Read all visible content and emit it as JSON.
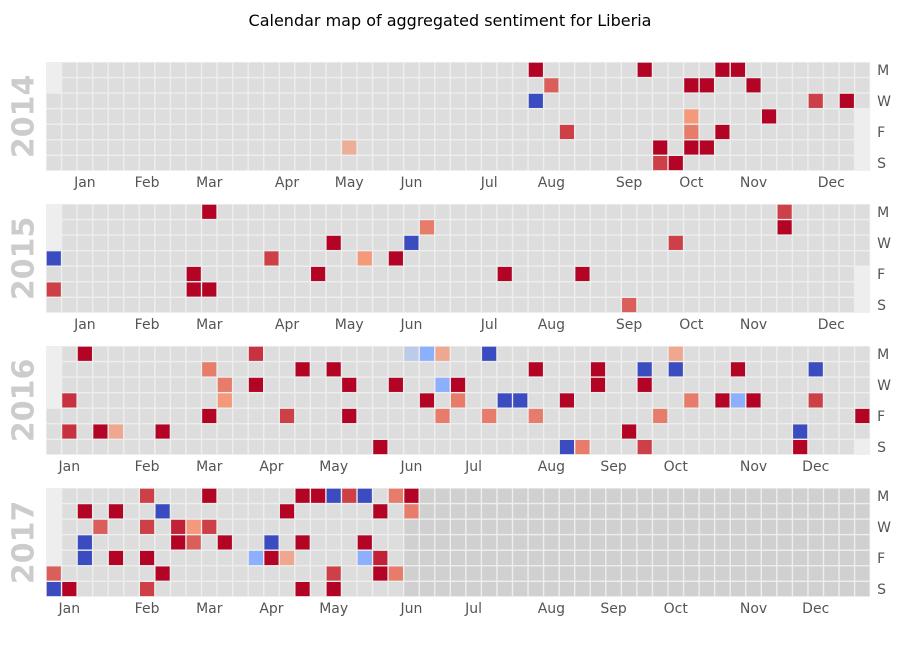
{
  "chart_data": {
    "type": "heatmap",
    "title": "Calendar map of aggregated sentiment for Liberia",
    "colormap": "coolwarm",
    "value_range": [
      -1,
      1
    ],
    "day_labels": [
      "M",
      "W",
      "F",
      "S"
    ],
    "colors": {
      "empty_cell": "#dddddd",
      "out_of_range_cell": "#d0d0d0",
      "grid": "#eeeeee",
      "year_label": "#cccccc"
    },
    "years": [
      {
        "year": "2014",
        "start_weekday": 2,
        "days_in_year": 365,
        "month_labels": [
          "Jan",
          "Feb",
          "Mar",
          "Apr",
          "May",
          "Jun",
          "Jul",
          "Aug",
          "Sep",
          "Oct",
          "Nov",
          "Dec"
        ],
        "month_label_weeks": [
          2,
          6,
          10,
          15,
          19,
          23,
          28,
          32,
          37,
          41,
          45,
          50
        ],
        "cells": [
          {
            "week": 31,
            "day": 0,
            "value": 1.0
          },
          {
            "week": 38,
            "day": 0,
            "value": 1.0
          },
          {
            "week": 43,
            "day": 0,
            "value": 1.0
          },
          {
            "week": 44,
            "day": 0,
            "value": 1.0
          },
          {
            "week": 32,
            "day": 1,
            "value": 0.7
          },
          {
            "week": 41,
            "day": 1,
            "value": 1.0
          },
          {
            "week": 42,
            "day": 1,
            "value": 1.0
          },
          {
            "week": 45,
            "day": 1,
            "value": 1.0
          },
          {
            "week": 31,
            "day": 2,
            "value": -1.0
          },
          {
            "week": 49,
            "day": 2,
            "value": 0.8
          },
          {
            "week": 51,
            "day": 2,
            "value": 1.0
          },
          {
            "week": 41,
            "day": 3,
            "value": 0.5
          },
          {
            "week": 46,
            "day": 3,
            "value": 1.0
          },
          {
            "week": 33,
            "day": 4,
            "value": 0.8
          },
          {
            "week": 41,
            "day": 4,
            "value": 0.6
          },
          {
            "week": 43,
            "day": 4,
            "value": 1.0
          },
          {
            "week": 19,
            "day": 5,
            "value": 0.35
          },
          {
            "week": 39,
            "day": 5,
            "value": 1.0
          },
          {
            "week": 41,
            "day": 5,
            "value": 1.0
          },
          {
            "week": 42,
            "day": 5,
            "value": 1.0
          },
          {
            "week": 39,
            "day": 6,
            "value": 0.8
          },
          {
            "week": 40,
            "day": 6,
            "value": 1.0
          }
        ]
      },
      {
        "year": "2015",
        "start_weekday": 3,
        "days_in_year": 365,
        "month_labels": [
          "Jan",
          "Feb",
          "Mar",
          "Apr",
          "May",
          "Jun",
          "Jul",
          "Aug",
          "Sep",
          "Oct",
          "Nov",
          "Dec"
        ],
        "month_label_weeks": [
          2,
          6,
          10,
          15,
          19,
          23,
          28,
          32,
          37,
          41,
          45,
          50
        ],
        "cells": [
          {
            "week": 10,
            "day": 0,
            "value": 1.0
          },
          {
            "week": 47,
            "day": 0,
            "value": 0.8
          },
          {
            "week": 24,
            "day": 1,
            "value": 0.6
          },
          {
            "week": 47,
            "day": 1,
            "value": 1.0
          },
          {
            "week": 18,
            "day": 2,
            "value": 1.0
          },
          {
            "week": 23,
            "day": 2,
            "value": -1.0
          },
          {
            "week": 40,
            "day": 2,
            "value": 0.8
          },
          {
            "week": 0,
            "day": 3,
            "value": -1.0
          },
          {
            "week": 14,
            "day": 3,
            "value": 0.8
          },
          {
            "week": 20,
            "day": 3,
            "value": 0.5
          },
          {
            "week": 22,
            "day": 3,
            "value": 1.0
          },
          {
            "week": 9,
            "day": 4,
            "value": 1.0
          },
          {
            "week": 17,
            "day": 4,
            "value": 1.0
          },
          {
            "week": 29,
            "day": 4,
            "value": 1.0
          },
          {
            "week": 34,
            "day": 4,
            "value": 1.0
          },
          {
            "week": 0,
            "day": 5,
            "value": 0.8
          },
          {
            "week": 9,
            "day": 5,
            "value": 1.0
          },
          {
            "week": 10,
            "day": 5,
            "value": 1.0
          },
          {
            "week": 37,
            "day": 6,
            "value": 0.7
          }
        ]
      },
      {
        "year": "2016",
        "start_weekday": 4,
        "days_in_year": 366,
        "month_labels": [
          "Jan",
          "Feb",
          "Mar",
          "Apr",
          "May",
          "Jun",
          "Jul",
          "Aug",
          "Sep",
          "Oct",
          "Nov",
          "Dec"
        ],
        "month_label_weeks": [
          1,
          6,
          10,
          14,
          18,
          23,
          27,
          32,
          36,
          40,
          45,
          49
        ],
        "cells": [
          {
            "week": 2,
            "day": 0,
            "value": 1.0
          },
          {
            "week": 13,
            "day": 0,
            "value": 0.85
          },
          {
            "week": 23,
            "day": 0,
            "value": -0.2
          },
          {
            "week": 24,
            "day": 0,
            "value": -0.5
          },
          {
            "week": 25,
            "day": 0,
            "value": 0.4
          },
          {
            "week": 28,
            "day": 0,
            "value": -1.0
          },
          {
            "week": 40,
            "day": 0,
            "value": 0.4
          },
          {
            "week": 10,
            "day": 1,
            "value": 0.6
          },
          {
            "week": 16,
            "day": 1,
            "value": 1.0
          },
          {
            "week": 18,
            "day": 1,
            "value": 1.0
          },
          {
            "week": 31,
            "day": 1,
            "value": 1.0
          },
          {
            "week": 35,
            "day": 1,
            "value": 1.0
          },
          {
            "week": 38,
            "day": 1,
            "value": -1.0
          },
          {
            "week": 40,
            "day": 1,
            "value": -1.0
          },
          {
            "week": 44,
            "day": 1,
            "value": 1.0
          },
          {
            "week": 49,
            "day": 1,
            "value": -1.0
          },
          {
            "week": 11,
            "day": 2,
            "value": 0.6
          },
          {
            "week": 13,
            "day": 2,
            "value": 1.0
          },
          {
            "week": 19,
            "day": 2,
            "value": 1.0
          },
          {
            "week": 22,
            "day": 2,
            "value": 1.0
          },
          {
            "week": 25,
            "day": 2,
            "value": -0.5
          },
          {
            "week": 26,
            "day": 2,
            "value": 1.0
          },
          {
            "week": 35,
            "day": 2,
            "value": 1.0
          },
          {
            "week": 38,
            "day": 2,
            "value": 1.0
          },
          {
            "week": 1,
            "day": 3,
            "value": 0.85
          },
          {
            "week": 11,
            "day": 3,
            "value": 0.5
          },
          {
            "week": 24,
            "day": 3,
            "value": 1.0
          },
          {
            "week": 26,
            "day": 3,
            "value": 0.6
          },
          {
            "week": 29,
            "day": 3,
            "value": -1.0
          },
          {
            "week": 30,
            "day": 3,
            "value": -1.0
          },
          {
            "week": 33,
            "day": 3,
            "value": 1.0
          },
          {
            "week": 41,
            "day": 3,
            "value": 0.6
          },
          {
            "week": 43,
            "day": 3,
            "value": 1.0
          },
          {
            "week": 44,
            "day": 3,
            "value": -0.5
          },
          {
            "week": 45,
            "day": 3,
            "value": 1.0
          },
          {
            "week": 49,
            "day": 3,
            "value": 0.8
          },
          {
            "week": 10,
            "day": 4,
            "value": 1.0
          },
          {
            "week": 15,
            "day": 4,
            "value": 0.8
          },
          {
            "week": 19,
            "day": 4,
            "value": 1.0
          },
          {
            "week": 25,
            "day": 4,
            "value": 0.6
          },
          {
            "week": 28,
            "day": 4,
            "value": 0.6
          },
          {
            "week": 31,
            "day": 4,
            "value": 0.6
          },
          {
            "week": 39,
            "day": 4,
            "value": 0.6
          },
          {
            "week": 52,
            "day": 4,
            "value": 1.0
          },
          {
            "week": 1,
            "day": 5,
            "value": 0.85
          },
          {
            "week": 3,
            "day": 5,
            "value": 1.0
          },
          {
            "week": 4,
            "day": 5,
            "value": 0.4
          },
          {
            "week": 7,
            "day": 5,
            "value": 1.0
          },
          {
            "week": 37,
            "day": 5,
            "value": 1.0
          },
          {
            "week": 48,
            "day": 5,
            "value": -1.0
          },
          {
            "week": 21,
            "day": 6,
            "value": 1.0
          },
          {
            "week": 33,
            "day": 6,
            "value": -1.0
          },
          {
            "week": 34,
            "day": 6,
            "value": 0.6
          },
          {
            "week": 38,
            "day": 6,
            "value": 0.8
          },
          {
            "week": 48,
            "day": 6,
            "value": 1.0
          }
        ]
      },
      {
        "year": "2017",
        "start_weekday": 6,
        "days_in_year": 365,
        "data_end_day_of_year": 157,
        "month_labels": [
          "Jan",
          "Feb",
          "Mar",
          "Apr",
          "May",
          "Jun",
          "Jul",
          "Aug",
          "Sep",
          "Oct",
          "Nov",
          "Dec"
        ],
        "month_label_weeks": [
          1,
          6,
          10,
          14,
          18,
          23,
          27,
          32,
          36,
          40,
          45,
          49
        ],
        "cells": [
          {
            "week": 6,
            "day": 0,
            "value": 0.8
          },
          {
            "week": 10,
            "day": 0,
            "value": 1.0
          },
          {
            "week": 16,
            "day": 0,
            "value": 1.0
          },
          {
            "week": 17,
            "day": 0,
            "value": 1.0
          },
          {
            "week": 18,
            "day": 0,
            "value": -1.0
          },
          {
            "week": 19,
            "day": 0,
            "value": 0.8
          },
          {
            "week": 20,
            "day": 0,
            "value": -1.0
          },
          {
            "week": 22,
            "day": 0,
            "value": 0.6
          },
          {
            "week": 23,
            "day": 0,
            "value": 1.0
          },
          {
            "week": 2,
            "day": 1,
            "value": 1.0
          },
          {
            "week": 4,
            "day": 1,
            "value": 1.0
          },
          {
            "week": 7,
            "day": 1,
            "value": -1.0
          },
          {
            "week": 15,
            "day": 1,
            "value": 1.0
          },
          {
            "week": 21,
            "day": 1,
            "value": 1.0
          },
          {
            "week": 23,
            "day": 1,
            "value": 0.6
          },
          {
            "week": 3,
            "day": 2,
            "value": 0.7
          },
          {
            "week": 6,
            "day": 2,
            "value": 0.8
          },
          {
            "week": 8,
            "day": 2,
            "value": 0.9
          },
          {
            "week": 9,
            "day": 2,
            "value": 0.5
          },
          {
            "week": 10,
            "day": 2,
            "value": 0.8
          },
          {
            "week": 2,
            "day": 3,
            "value": -1.0
          },
          {
            "week": 8,
            "day": 3,
            "value": 1.0
          },
          {
            "week": 9,
            "day": 3,
            "value": 0.7
          },
          {
            "week": 11,
            "day": 3,
            "value": 1.0
          },
          {
            "week": 14,
            "day": 3,
            "value": -1.0
          },
          {
            "week": 16,
            "day": 3,
            "value": 1.0
          },
          {
            "week": 20,
            "day": 3,
            "value": 1.0
          },
          {
            "week": 2,
            "day": 4,
            "value": -1.0
          },
          {
            "week": 4,
            "day": 4,
            "value": 1.0
          },
          {
            "week": 6,
            "day": 4,
            "value": 1.0
          },
          {
            "week": 13,
            "day": 4,
            "value": -0.5
          },
          {
            "week": 14,
            "day": 4,
            "value": 1.0
          },
          {
            "week": 15,
            "day": 4,
            "value": 0.4
          },
          {
            "week": 20,
            "day": 4,
            "value": -0.5
          },
          {
            "week": 21,
            "day": 4,
            "value": 0.9
          },
          {
            "week": 0,
            "day": 5,
            "value": 0.7
          },
          {
            "week": 7,
            "day": 5,
            "value": 1.0
          },
          {
            "week": 18,
            "day": 5,
            "value": 0.8
          },
          {
            "week": 21,
            "day": 5,
            "value": 1.0
          },
          {
            "week": 22,
            "day": 5,
            "value": 0.6
          },
          {
            "week": 0,
            "day": 6,
            "value": -1.0
          },
          {
            "week": 1,
            "day": 6,
            "value": 1.0
          },
          {
            "week": 6,
            "day": 6,
            "value": 0.8
          },
          {
            "week": 16,
            "day": 6,
            "value": 1.0
          },
          {
            "week": 18,
            "day": 6,
            "value": 1.0
          }
        ]
      }
    ]
  }
}
